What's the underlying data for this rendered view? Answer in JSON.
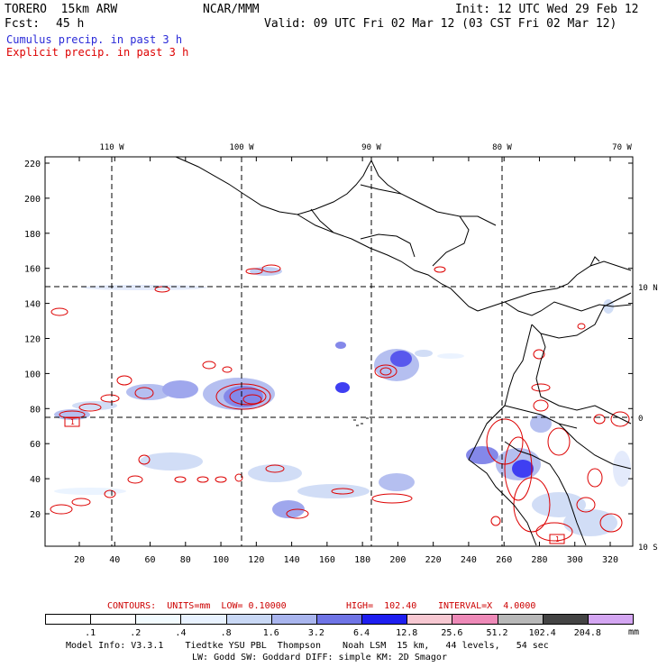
{
  "header": {
    "model": "TORERO  15km ARW",
    "org": "NCAR/MMM",
    "init": "Init: 12 UTC Wed 29 Feb 12",
    "fcst_label": "Fcst:",
    "fcst_value": "45 h",
    "valid": "Valid: 09 UTC Fri 02 Mar 12 (03 CST Fri 02 Mar 12)",
    "line_cumulus": "Cumulus precip. in past 3 h",
    "line_explicit": "Explicit precip. in past 3 h"
  },
  "colors": {
    "cumulus": "#0000cc",
    "explicit": "#dd0000",
    "contour_info": "#cc0000",
    "land_border": "#000000"
  },
  "map": {
    "lon_labels": [
      "110 W",
      "100 W",
      "90 W",
      "80 W",
      "70 W"
    ],
    "lat_labels": [
      "10 N",
      "0",
      "10 S"
    ],
    "y_ticks": [
      "220",
      "200",
      "180",
      "160",
      "140",
      "120",
      "100",
      "80",
      "60",
      "40",
      "20"
    ],
    "x_ticks": [
      "20",
      "40",
      "60",
      "80",
      "100",
      "120",
      "140",
      "160",
      "180",
      "200",
      "220",
      "240",
      "260",
      "280",
      "300",
      "320"
    ],
    "box_label": "1"
  },
  "contour_info": {
    "text_contours": "CONTOURS:  UNITS=mm  LOW= 0.10000",
    "text_high": "HIGH=  102.40",
    "text_interval": "INTERVAL=X  4.0000"
  },
  "colorbar": {
    "labels": [
      ".1",
      ".2",
      ".4",
      ".8",
      "1.6",
      "3.2",
      "6.4",
      "12.8",
      "25.6",
      "51.2",
      "102.4",
      "204.8"
    ],
    "unit": "mm",
    "colors": [
      "#ffffff",
      "#ffffff",
      "#f2fbff",
      "#e8f2ff",
      "#c9d8f5",
      "#a9b5ee",
      "#6f74e6",
      "#1e1ef0",
      "#f7c8d2",
      "#ee8ab8",
      "#b8b8b8",
      "#444444",
      "#d4a6f2"
    ]
  },
  "footer": {
    "line1": "Model Info: V3.3.1    Tiedtke YSU PBL  Thompson    Noah LSM  15 km,   44 levels,   54 sec",
    "line2": "LW: Godd SW: Goddard DIFF: simple KM: 2D Smagor"
  }
}
